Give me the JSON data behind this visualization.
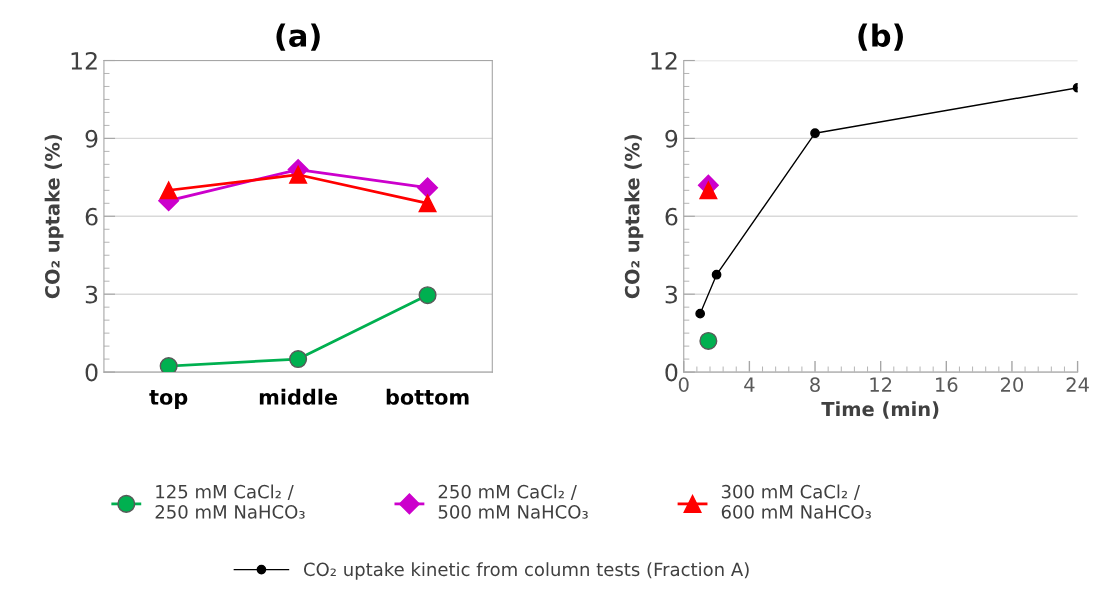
{
  "chart_data": [
    {
      "type": "line",
      "title": "(a)",
      "ylabel": "CO₂ uptake (%)",
      "categories": [
        "top",
        "middle",
        "bottom"
      ],
      "ylim": [
        0,
        12
      ],
      "yticks": [
        0,
        3,
        6,
        9,
        12
      ],
      "grid": "y",
      "legend": "bottom",
      "series": [
        {
          "name": "125 mM CaCl₂ /\n250 mM NaHCO₃",
          "color": "#00b050",
          "marker": "circle",
          "values": [
            0.23,
            0.5,
            2.96
          ]
        },
        {
          "name": "250 mM CaCl₂ /\n500 mM NaHCO₃",
          "color": "#cc00cc",
          "marker": "diamond",
          "values": [
            6.6,
            7.8,
            7.1
          ]
        },
        {
          "name": "300 mM CaCl₂ /\n600 mM NaHCO₃",
          "color": "#ff0000",
          "marker": "triangle",
          "values": [
            7.0,
            7.6,
            6.5
          ]
        }
      ]
    },
    {
      "type": "line",
      "title": "(b)",
      "ylabel": "CO₂ uptake (%)",
      "xlabel": "Time (min)",
      "xlim": [
        0,
        24
      ],
      "xticks": [
        0,
        4,
        8,
        12,
        16,
        20,
        24
      ],
      "ylim": [
        0,
        12
      ],
      "yticks": [
        0,
        3,
        6,
        9,
        12
      ],
      "grid": "y",
      "legend": "bottom",
      "series": [
        {
          "type": "scatter",
          "color": "#00b050",
          "marker": "circle",
          "x": [
            1.5
          ],
          "values": [
            1.2
          ]
        },
        {
          "type": "scatter",
          "color": "#cc00cc",
          "marker": "diamond",
          "x": [
            1.5
          ],
          "values": [
            7.2
          ]
        },
        {
          "type": "scatter",
          "color": "#ff0000",
          "marker": "triangle",
          "x": [
            1.5
          ],
          "values": [
            7.0
          ]
        },
        {
          "type": "line",
          "name": "CO₂ uptake kinetic from column tests (Fraction A)",
          "color": "#000000",
          "marker": "circle",
          "x": [
            1,
            2,
            8,
            24
          ],
          "values": [
            2.25,
            3.75,
            9.2,
            10.95
          ]
        }
      ]
    }
  ]
}
